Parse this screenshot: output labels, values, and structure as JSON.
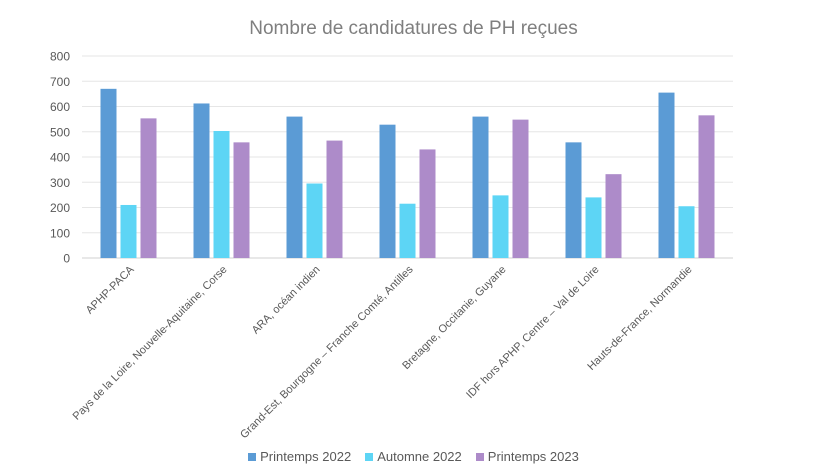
{
  "chart_data": {
    "type": "bar",
    "title": "Nombre de candidatures de PH reçues",
    "categories": [
      "APHP-PACA",
      "Pays de la Loire, Nouvelle-Aquitaine, Corse",
      "ARA, océan indien",
      "Grand-Est, Bourgogne – Franche Comté, Antilles",
      "Bretagne, Occitanie, Guyane",
      "IDF hors APHP, Centre – Val de Loire",
      "Hauts-de-France, Normandie"
    ],
    "series": [
      {
        "name": "Printemps 2022",
        "color": "#5b9bd5",
        "values": [
          670,
          612,
          560,
          528,
          560,
          458,
          655
        ]
      },
      {
        "name": "Automne 2022",
        "color": "#5dd5f5",
        "values": [
          210,
          503,
          295,
          215,
          248,
          240,
          205
        ]
      },
      {
        "name": "Printemps 2023",
        "color": "#ad8bc9",
        "values": [
          553,
          458,
          465,
          430,
          548,
          332,
          565
        ]
      }
    ],
    "xlabel": "",
    "ylabel": "",
    "ylim": [
      0,
      800
    ],
    "yticks": [
      "0",
      "100",
      "200",
      "300",
      "400",
      "500",
      "600",
      "700",
      "800"
    ],
    "grid": true,
    "legend": "bottom"
  }
}
